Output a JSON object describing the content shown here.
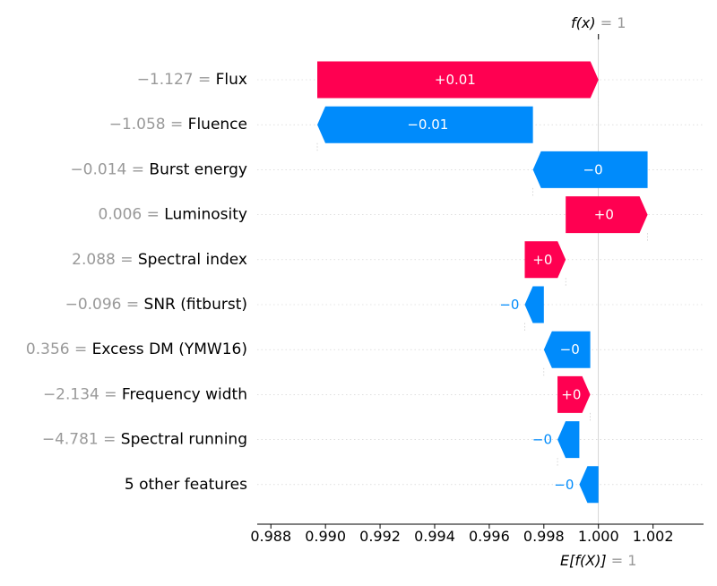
{
  "chart_data": {
    "type": "waterfall",
    "top_label": {
      "name": "f(x)",
      "value": "1"
    },
    "bottom_label": {
      "name": "E[f(X)]",
      "value": "1"
    },
    "xlim": [
      0.9875,
      1.00385
    ],
    "x_ticks": [
      {
        "value": 0.988,
        "label": "0.988"
      },
      {
        "value": 0.99,
        "label": "0.990"
      },
      {
        "value": 0.992,
        "label": "0.992"
      },
      {
        "value": 0.994,
        "label": "0.994"
      },
      {
        "value": 0.996,
        "label": "0.996"
      },
      {
        "value": 0.998,
        "label": "0.998"
      },
      {
        "value": 1.0,
        "label": "1.000"
      },
      {
        "value": 1.002,
        "label": "1.002"
      }
    ],
    "f_x": 1.0,
    "expected_value": 1.0,
    "colors": {
      "positive": "#ff0051",
      "negative": "#008bfb",
      "feature_value": "#999999",
      "feature_name": "#000000"
    },
    "features": [
      {
        "value_text": "−1.127",
        "name": "Flux",
        "start": 0.9897,
        "end": 1.0,
        "label": "+0.01",
        "sign": "positive"
      },
      {
        "value_text": "−1.058",
        "name": "Fluence",
        "start": 0.9976,
        "end": 0.9897,
        "label": "−0.01",
        "sign": "negative"
      },
      {
        "value_text": "−0.014",
        "name": "Burst energy",
        "start": 1.0018,
        "end": 0.9976,
        "label": "−0",
        "sign": "negative"
      },
      {
        "value_text": "0.006",
        "name": "Luminosity",
        "start": 0.9988,
        "end": 1.0018,
        "label": "+0",
        "sign": "positive"
      },
      {
        "value_text": "2.088",
        "name": "Spectral index",
        "start": 0.9973,
        "end": 0.9988,
        "label": "+0",
        "sign": "positive"
      },
      {
        "value_text": "−0.096",
        "name": "SNR (fitburst)",
        "start": 0.998,
        "end": 0.9973,
        "label": "−0",
        "sign": "negative"
      },
      {
        "value_text": "0.356",
        "name": "Excess DM (YMW16)",
        "start": 0.9997,
        "end": 0.998,
        "label": "−0",
        "sign": "negative"
      },
      {
        "value_text": "−2.134",
        "name": "Frequency width",
        "start": 0.9985,
        "end": 0.9997,
        "label": "+0",
        "sign": "positive"
      },
      {
        "value_text": "−4.781",
        "name": "Spectral running",
        "start": 0.9993,
        "end": 0.9985,
        "label": "−0",
        "sign": "negative"
      },
      {
        "value_text": "",
        "name": "5 other features",
        "start": 1.0,
        "end": 0.9993,
        "label": "−0",
        "sign": "negative"
      }
    ]
  }
}
